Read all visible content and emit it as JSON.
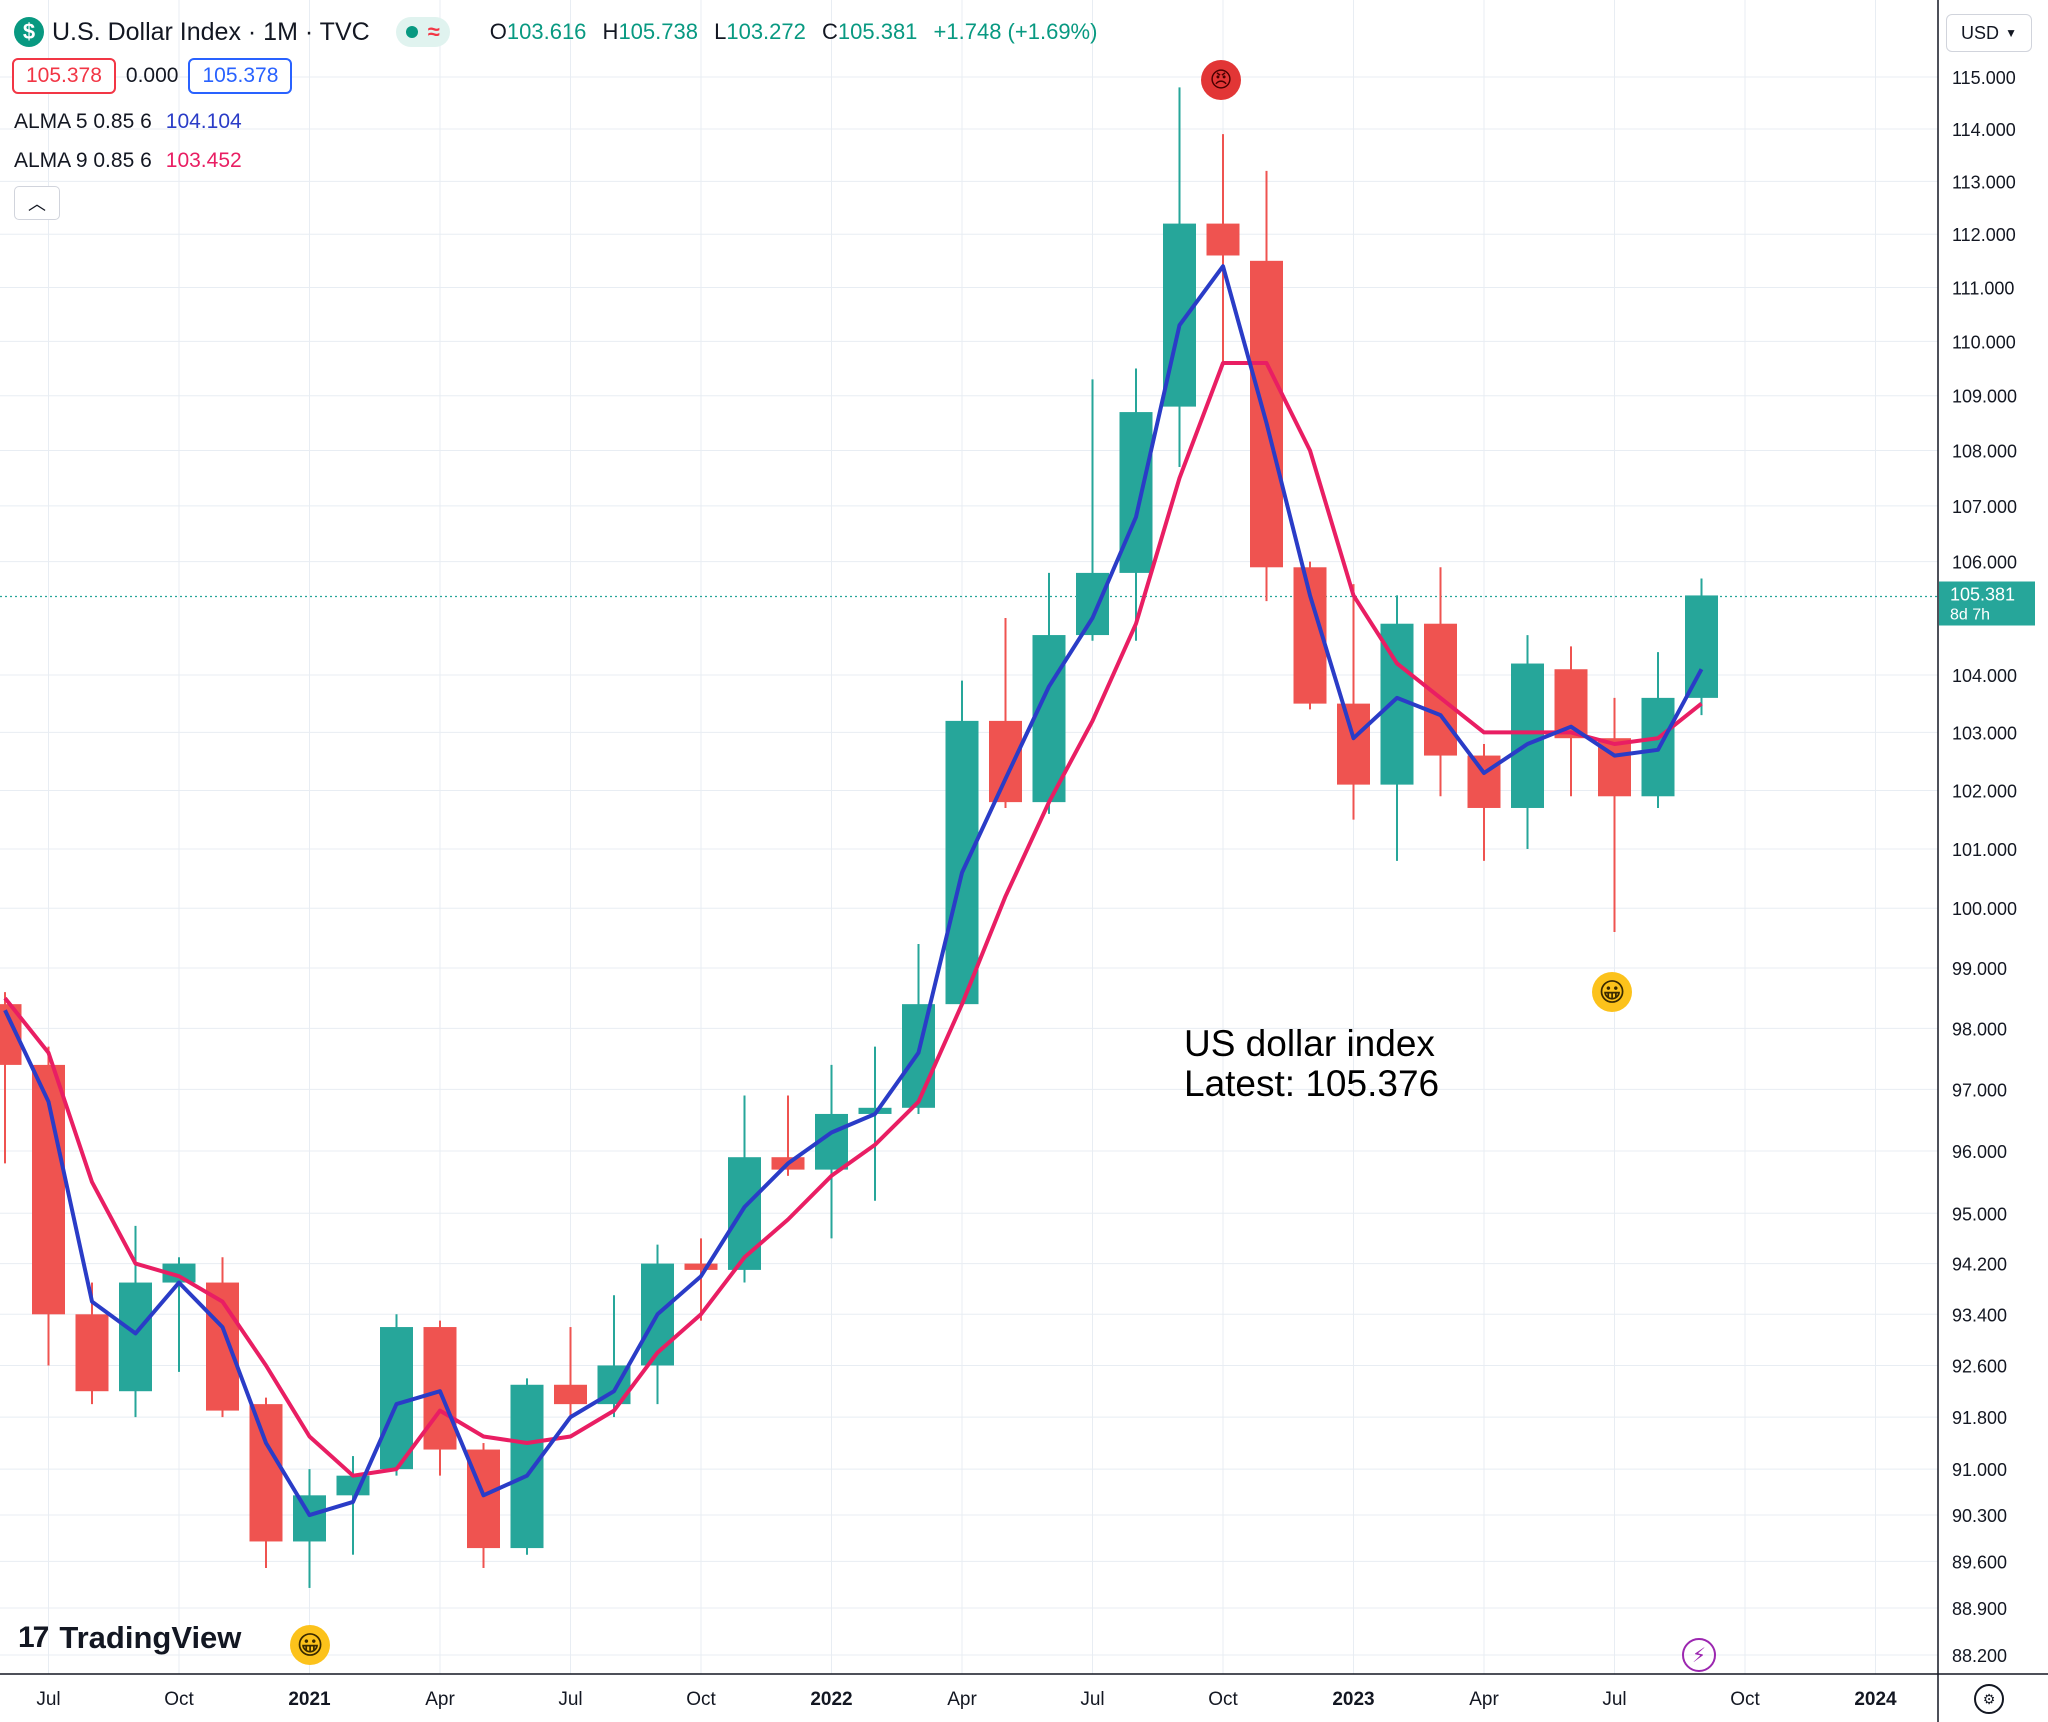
{
  "header": {
    "symbol_icon": "dollar-icon",
    "title": "U.S. Dollar Index · 1M · TVC",
    "ohlc": {
      "o_label": "O",
      "o": "103.616",
      "h_label": "H",
      "h": "105.738",
      "l_label": "L",
      "l": "103.272",
      "c_label": "C",
      "c": "105.381",
      "change": "+1.748 (+1.69%)"
    },
    "bid": "105.378",
    "spread": "0.000",
    "ask": "105.378",
    "currency": "USD"
  },
  "indicators": [
    {
      "label": "ALMA 5 0.85 6",
      "value": "104.104",
      "color": "#2a3cc7"
    },
    {
      "label": "ALMA 9 0.85 6",
      "value": "103.452",
      "color": "#e91e63"
    }
  ],
  "colors": {
    "up": "#26a69a",
    "down": "#ef5350",
    "grid": "#e8edf3"
  },
  "annotation": {
    "line1": "US dollar index",
    "line2": "Latest: 105.376"
  },
  "brand": "TradingView",
  "chart_data": {
    "type": "candlestick",
    "price_axis": {
      "scale": "log",
      "ticks": [
        "115.000",
        "114.000",
        "113.000",
        "112.000",
        "111.000",
        "110.000",
        "109.000",
        "108.000",
        "107.000",
        "106.000",
        "104.000",
        "103.000",
        "102.000",
        "101.000",
        "100.000",
        "99.000",
        "98.000",
        "97.000",
        "96.000",
        "95.000",
        "94.200",
        "93.400",
        "92.600",
        "91.800",
        "91.000",
        "90.300",
        "89.600",
        "88.900",
        "88.200"
      ]
    },
    "time_axis": {
      "ticks": [
        {
          "label": "Jul",
          "index": 1,
          "bold": false
        },
        {
          "label": "Oct",
          "index": 4,
          "bold": false
        },
        {
          "label": "2021",
          "index": 7,
          "bold": true
        },
        {
          "label": "Apr",
          "index": 10,
          "bold": false
        },
        {
          "label": "Jul",
          "index": 13,
          "bold": false
        },
        {
          "label": "Oct",
          "index": 16,
          "bold": false
        },
        {
          "label": "2022",
          "index": 19,
          "bold": true
        },
        {
          "label": "Apr",
          "index": 22,
          "bold": false
        },
        {
          "label": "Jul",
          "index": 25,
          "bold": false
        },
        {
          "label": "Oct",
          "index": 28,
          "bold": false
        },
        {
          "label": "2023",
          "index": 31,
          "bold": true
        },
        {
          "label": "Apr",
          "index": 34,
          "bold": false
        },
        {
          "label": "Jul",
          "index": 37,
          "bold": false
        },
        {
          "label": "Oct",
          "index": 40,
          "bold": false
        },
        {
          "label": "2024",
          "index": 43,
          "bold": true
        }
      ]
    },
    "last_price": {
      "value": "105.381",
      "countdown": "8d 7h"
    },
    "candles": [
      {
        "t": "2020-06",
        "o": 98.4,
        "h": 98.6,
        "l": 95.8,
        "c": 97.4
      },
      {
        "t": "2020-07",
        "o": 97.4,
        "h": 97.7,
        "l": 92.6,
        "c": 93.4
      },
      {
        "t": "2020-08",
        "o": 93.4,
        "h": 93.9,
        "l": 92.0,
        "c": 92.2
      },
      {
        "t": "2020-09",
        "o": 92.2,
        "h": 94.8,
        "l": 91.8,
        "c": 93.9
      },
      {
        "t": "2020-10",
        "o": 93.9,
        "h": 94.3,
        "l": 92.5,
        "c": 94.2
      },
      {
        "t": "2020-11",
        "o": 93.9,
        "h": 94.3,
        "l": 91.8,
        "c": 91.9
      },
      {
        "t": "2020-12",
        "o": 92.0,
        "h": 92.1,
        "l": 89.5,
        "c": 89.9
      },
      {
        "t": "2021-01",
        "o": 89.9,
        "h": 91.0,
        "l": 89.2,
        "c": 90.6
      },
      {
        "t": "2021-02",
        "o": 90.6,
        "h": 91.2,
        "l": 89.7,
        "c": 90.9
      },
      {
        "t": "2021-03",
        "o": 91.0,
        "h": 93.4,
        "l": 90.9,
        "c": 93.2
      },
      {
        "t": "2021-04",
        "o": 93.2,
        "h": 93.3,
        "l": 90.9,
        "c": 91.3
      },
      {
        "t": "2021-05",
        "o": 91.3,
        "h": 91.4,
        "l": 89.5,
        "c": 89.8
      },
      {
        "t": "2021-06",
        "o": 89.8,
        "h": 92.4,
        "l": 89.7,
        "c": 92.3
      },
      {
        "t": "2021-07",
        "o": 92.3,
        "h": 93.2,
        "l": 91.8,
        "c": 92.0
      },
      {
        "t": "2021-08",
        "o": 92.0,
        "h": 93.7,
        "l": 91.8,
        "c": 92.6
      },
      {
        "t": "2021-09",
        "o": 92.6,
        "h": 94.5,
        "l": 92.0,
        "c": 94.2
      },
      {
        "t": "2021-10",
        "o": 94.2,
        "h": 94.6,
        "l": 93.3,
        "c": 94.1
      },
      {
        "t": "2021-11",
        "o": 94.1,
        "h": 96.9,
        "l": 93.9,
        "c": 95.9
      },
      {
        "t": "2021-12",
        "o": 95.9,
        "h": 96.9,
        "l": 95.6,
        "c": 95.7
      },
      {
        "t": "2022-01",
        "o": 95.7,
        "h": 97.4,
        "l": 94.6,
        "c": 96.6
      },
      {
        "t": "2022-02",
        "o": 96.6,
        "h": 97.7,
        "l": 95.2,
        "c": 96.7
      },
      {
        "t": "2022-03",
        "o": 96.7,
        "h": 99.4,
        "l": 96.6,
        "c": 98.4
      },
      {
        "t": "2022-04",
        "o": 98.4,
        "h": 103.9,
        "l": 98.4,
        "c": 103.2
      },
      {
        "t": "2022-05",
        "o": 103.2,
        "h": 105.0,
        "l": 101.7,
        "c": 101.8
      },
      {
        "t": "2022-06",
        "o": 101.8,
        "h": 105.8,
        "l": 101.6,
        "c": 104.7
      },
      {
        "t": "2022-07",
        "o": 104.7,
        "h": 109.3,
        "l": 104.6,
        "c": 105.8
      },
      {
        "t": "2022-08",
        "o": 105.8,
        "h": 109.5,
        "l": 104.6,
        "c": 108.7
      },
      {
        "t": "2022-09",
        "o": 108.8,
        "h": 114.8,
        "l": 107.7,
        "c": 112.2
      },
      {
        "t": "2022-10",
        "o": 112.2,
        "h": 113.9,
        "l": 109.6,
        "c": 111.6
      },
      {
        "t": "2022-11",
        "o": 111.5,
        "h": 113.2,
        "l": 105.3,
        "c": 105.9
      },
      {
        "t": "2022-12",
        "o": 105.9,
        "h": 106.0,
        "l": 103.4,
        "c": 103.5
      },
      {
        "t": "2023-01",
        "o": 103.5,
        "h": 105.6,
        "l": 101.5,
        "c": 102.1
      },
      {
        "t": "2023-02",
        "o": 102.1,
        "h": 105.4,
        "l": 100.8,
        "c": 104.9
      },
      {
        "t": "2023-03",
        "o": 104.9,
        "h": 105.9,
        "l": 101.9,
        "c": 102.6
      },
      {
        "t": "2023-04",
        "o": 102.6,
        "h": 102.8,
        "l": 100.8,
        "c": 101.7
      },
      {
        "t": "2023-05",
        "o": 101.7,
        "h": 104.7,
        "l": 101.0,
        "c": 104.2
      },
      {
        "t": "2023-06",
        "o": 104.1,
        "h": 104.5,
        "l": 101.9,
        "c": 102.9
      },
      {
        "t": "2023-07",
        "o": 102.9,
        "h": 103.6,
        "l": 99.6,
        "c": 101.9
      },
      {
        "t": "2023-08",
        "o": 101.9,
        "h": 104.4,
        "l": 101.7,
        "c": 103.6
      },
      {
        "t": "2023-09",
        "o": 103.6,
        "h": 105.7,
        "l": 103.3,
        "c": 105.4
      }
    ],
    "alma5": [
      98.3,
      96.8,
      93.6,
      93.1,
      93.9,
      93.2,
      91.4,
      90.3,
      90.5,
      92.0,
      92.2,
      90.6,
      90.9,
      91.8,
      92.2,
      93.4,
      94.0,
      95.1,
      95.8,
      96.3,
      96.6,
      97.6,
      100.6,
      102.2,
      103.8,
      105.0,
      106.8,
      110.3,
      111.4,
      108.5,
      105.4,
      102.9,
      103.6,
      103.3,
      102.3,
      102.8,
      103.1,
      102.6,
      102.7,
      104.1
    ],
    "alma9": [
      98.5,
      97.6,
      95.5,
      94.2,
      94.0,
      93.6,
      92.6,
      91.5,
      90.9,
      91.0,
      91.9,
      91.5,
      91.4,
      91.5,
      91.9,
      92.8,
      93.4,
      94.3,
      94.9,
      95.6,
      96.1,
      96.8,
      98.4,
      100.2,
      101.8,
      103.2,
      104.9,
      107.5,
      109.6,
      109.6,
      108.0,
      105.4,
      104.2,
      103.6,
      103.0,
      103.0,
      103.0,
      102.8,
      102.9,
      103.5
    ]
  }
}
